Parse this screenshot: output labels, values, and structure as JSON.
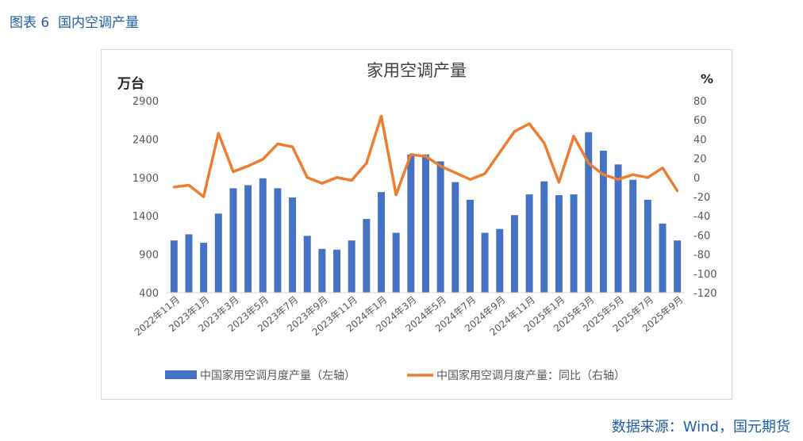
{
  "figure_label": "图表 6  国内空调产量",
  "source_text": "数据来源：Wind，国元期货",
  "colors": {
    "bar": "#4472c4",
    "line": "#ed7d31",
    "axis_text": "#595959",
    "title_text": "#404040"
  },
  "chart_data": {
    "type": "bar+line",
    "title": "家用空调产量",
    "left_unit": "万台",
    "right_unit": "%",
    "left_ticks": [
      "2900",
      "2400",
      "1900",
      "1400",
      "900",
      "400"
    ],
    "right_ticks": [
      "80",
      "60",
      "40",
      "20",
      "0",
      "-20",
      "-40",
      "-60",
      "-80",
      "-100",
      "-120"
    ],
    "left_range": [
      400,
      2900
    ],
    "right_range": [
      -120,
      80
    ],
    "months": [
      "2022-11",
      "2022-12",
      "2023-01",
      "2023-02",
      "2023-03",
      "2023-04",
      "2023-05",
      "2023-06",
      "2023-07",
      "2023-08",
      "2023-09",
      "2023-10",
      "2023-11",
      "2023-12",
      "2024-01",
      "2024-02",
      "2024-03",
      "2024-04",
      "2024-05",
      "2024-06",
      "2024-07",
      "2024-08",
      "2024-09",
      "2024-10",
      "2024-11",
      "2024-12",
      "2025-01",
      "2025-02",
      "2025-03",
      "2025-04",
      "2025-05",
      "2025-06",
      "2025-07",
      "2025-08",
      "2025-09"
    ],
    "x_labels": [
      "2022年11月",
      "2023年1月",
      "2023年3月",
      "2023年5月",
      "2023年7月",
      "2023年9月",
      "2023年11月",
      "2024年1月",
      "2024年3月",
      "2024年5月",
      "2024年7月",
      "2024年9月",
      "2024年11月",
      "2025年1月",
      "2025年3月",
      "2025年5月",
      "2025年7月",
      "2025年9月"
    ],
    "series": [
      {
        "name": "中国家用空调月度产量（左轴）",
        "axis": "left",
        "values": [
          1080,
          1160,
          1050,
          1430,
          1760,
          1800,
          1890,
          1760,
          1640,
          1140,
          970,
          960,
          1080,
          1360,
          1710,
          1180,
          2200,
          2200,
          2110,
          1840,
          1610,
          1180,
          1230,
          1410,
          1680,
          1850,
          1670,
          1680,
          2490,
          2250,
          2070,
          1870,
          1610,
          1300,
          1080
        ]
      },
      {
        "name": "中国家用空调月度产量：同比（右轴）",
        "axis": "right",
        "values": [
          -10,
          -8,
          -20,
          46,
          6,
          12,
          19,
          35,
          32,
          0,
          -6,
          0,
          -3,
          15,
          64,
          -18,
          24,
          22,
          12,
          5,
          -2,
          4,
          26,
          48,
          56,
          36,
          -5,
          43,
          15,
          3,
          -2,
          3,
          0,
          10,
          -14
        ]
      }
    ]
  }
}
